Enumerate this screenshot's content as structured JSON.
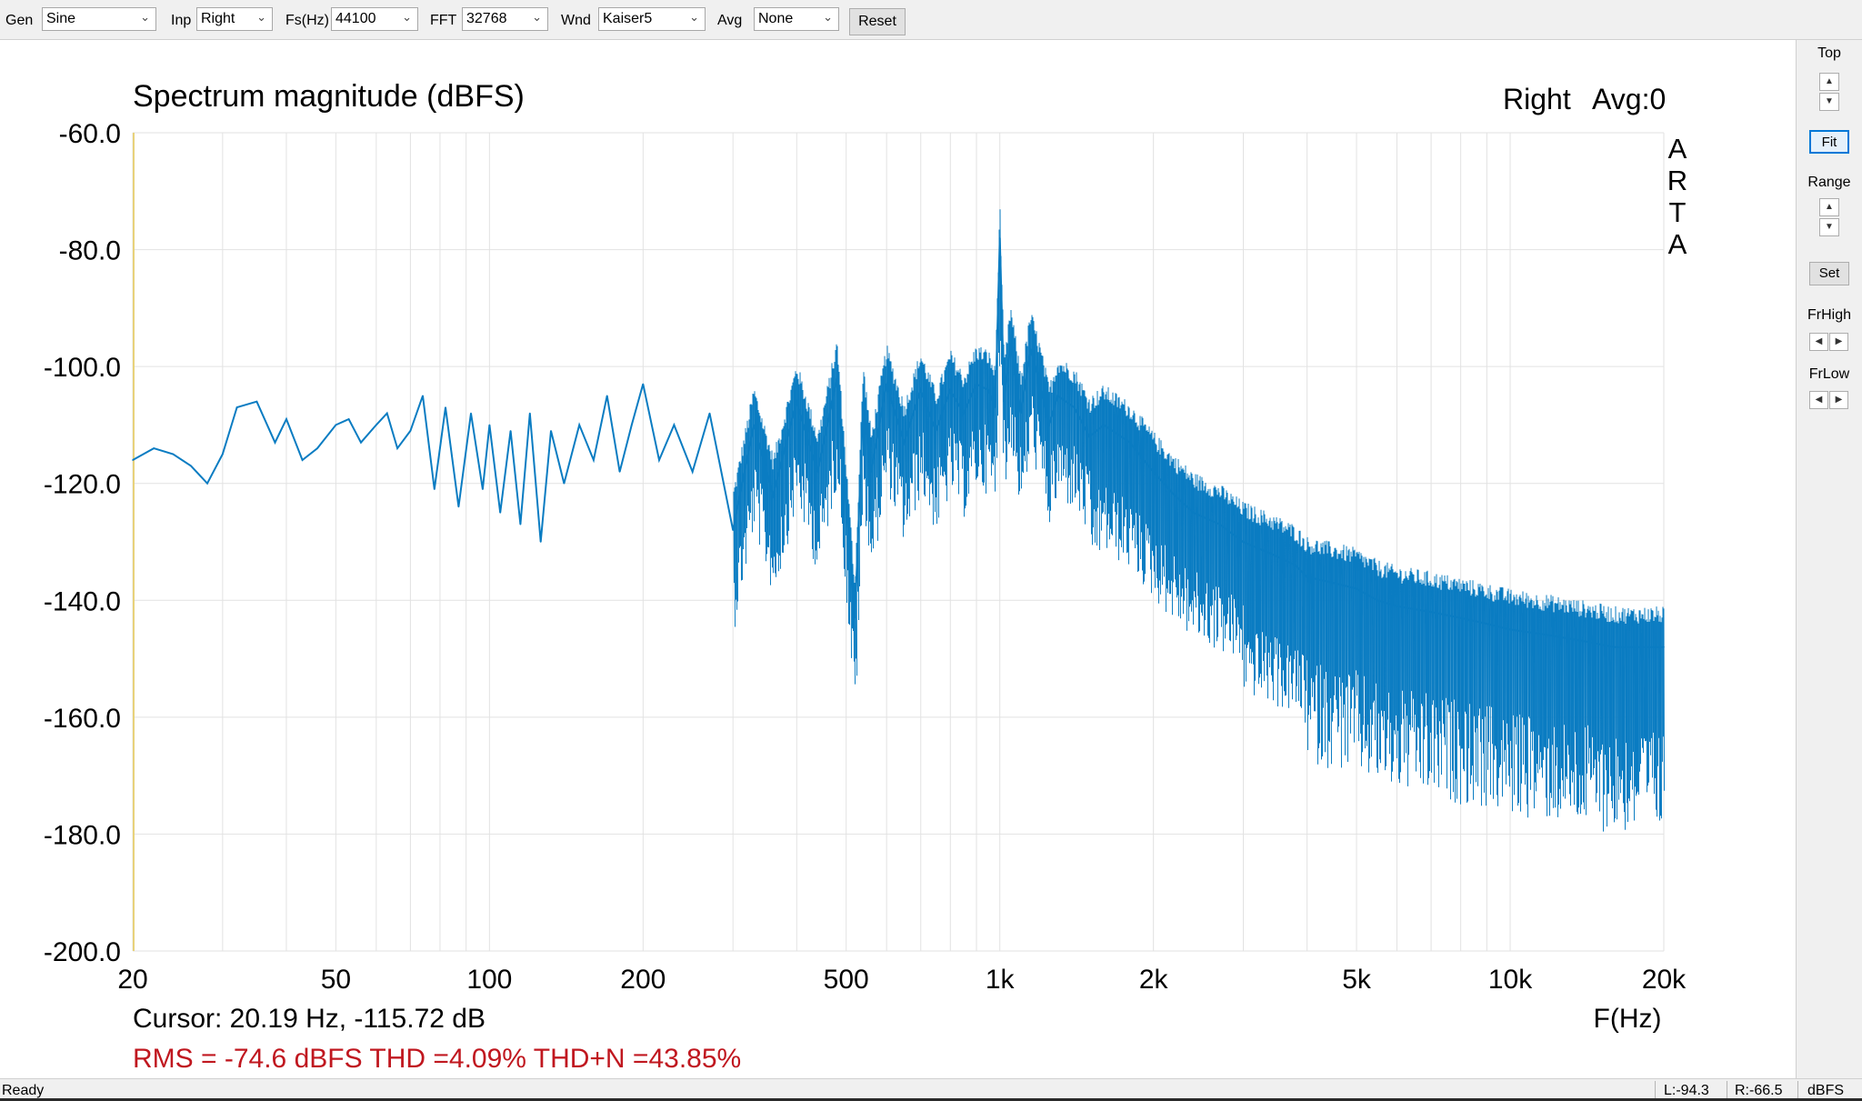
{
  "toolbar": {
    "gen_label": "Gen",
    "gen_value": "Sine",
    "inp_label": "Inp",
    "inp_value": "Right",
    "fs_label": "Fs(Hz)",
    "fs_value": "44100",
    "fft_label": "FFT",
    "fft_value": "32768",
    "wnd_label": "Wnd",
    "wnd_value": "Kaiser5",
    "avg_label": "Avg",
    "avg_value": "None",
    "reset_label": "Reset"
  },
  "sidebar": {
    "top_label": "Top",
    "range_label": "Range",
    "fit_label": "Fit",
    "set_label": "Set",
    "frhigh_label": "FrHigh",
    "frlow_label": "FrLow",
    "up_icon": "triangle-up",
    "down_icon": "triangle-down",
    "left_icon": "triangle-left",
    "right_icon": "triangle-right"
  },
  "status": {
    "ready": "Ready",
    "left_level": "L:-94.3",
    "right_level": "R:-66.5",
    "unit": "dBFS"
  },
  "plot": {
    "logo": [
      "A",
      "R",
      "T",
      "A"
    ],
    "channel": "Right",
    "average": "Avg:0",
    "cursor": "Cursor: 20.19 Hz, -115.72 dB",
    "measurement": "RMS =  -74.6 dBFS THD =4.09% THD+N =43.85%"
  },
  "chart_data": {
    "type": "line",
    "title": "Spectrum magnitude (dBFS)",
    "xlabel": "F(Hz)",
    "ylabel": "",
    "x_scale": "log",
    "xlim": [
      20,
      20000
    ],
    "ylim": [
      -200,
      -60
    ],
    "grid": true,
    "x_ticks": [
      20,
      50,
      100,
      200,
      500,
      1000,
      2000,
      5000,
      10000,
      20000
    ],
    "x_tick_labels": [
      "20",
      "50",
      "100",
      "200",
      "500",
      "1k",
      "2k",
      "5k",
      "10k",
      "20k"
    ],
    "y_ticks": [
      -60,
      -80,
      -100,
      -120,
      -140,
      -160,
      -180,
      -200
    ],
    "y_tick_labels": [
      "-60.0",
      "-80.0",
      "-100.0",
      "-120.0",
      "-140.0",
      "-160.0",
      "-180.0",
      "-200.0"
    ],
    "line_color": "#0a7cc2",
    "background": "#ffffff",
    "grid_color": "#e2e2e2",
    "series": [
      {
        "x": [
          20,
          22,
          24,
          26,
          28,
          30,
          32,
          35,
          38,
          40,
          43,
          46,
          50,
          53,
          56,
          60,
          63,
          66,
          70,
          74,
          78,
          82,
          87,
          92,
          97,
          100,
          105,
          110,
          115,
          120,
          126,
          132,
          140,
          150,
          160,
          170,
          180,
          190,
          200,
          215,
          230,
          250,
          270,
          300,
          330,
          360,
          400,
          440,
          480,
          520,
          540,
          560,
          600,
          650,
          700,
          750,
          800,
          850,
          900,
          950,
          980,
          1000,
          1020,
          1050,
          1100,
          1150,
          1200,
          1250,
          1300,
          1400,
          1500,
          1600,
          1800,
          2000,
          2200,
          2400,
          2700,
          3000,
          3400,
          3800,
          4000,
          4500,
          5000,
          5500,
          6000,
          7000,
          8000,
          9000,
          10000,
          12000,
          14000,
          16000,
          18000,
          20000
        ],
        "y": [
          -116,
          -114,
          -115,
          -117,
          -120,
          -115,
          -107,
          -106,
          -113,
          -109,
          -116,
          -114,
          -110,
          -109,
          -113,
          -110,
          -108,
          -114,
          -111,
          -105,
          -121,
          -107,
          -124,
          -108,
          -121,
          -110,
          -125,
          -111,
          -127,
          -108,
          -130,
          -111,
          -120,
          -110,
          -116,
          -105,
          -118,
          -110,
          -103,
          -116,
          -110,
          -118,
          -108,
          -128,
          -110,
          -122,
          -106,
          -118,
          -102,
          -143,
          -106,
          -118,
          -103,
          -113,
          -104,
          -111,
          -104,
          -108,
          -103,
          -104,
          -107,
          -78,
          -106,
          -96,
          -108,
          -97,
          -103,
          -110,
          -105,
          -107,
          -112,
          -110,
          -113,
          -118,
          -122,
          -125,
          -127,
          -130,
          -132,
          -134,
          -136,
          -137,
          -138,
          -140,
          -141,
          -142,
          -143,
          -144,
          -145,
          -146,
          -147,
          -148,
          -148,
          -148
        ]
      }
    ]
  }
}
